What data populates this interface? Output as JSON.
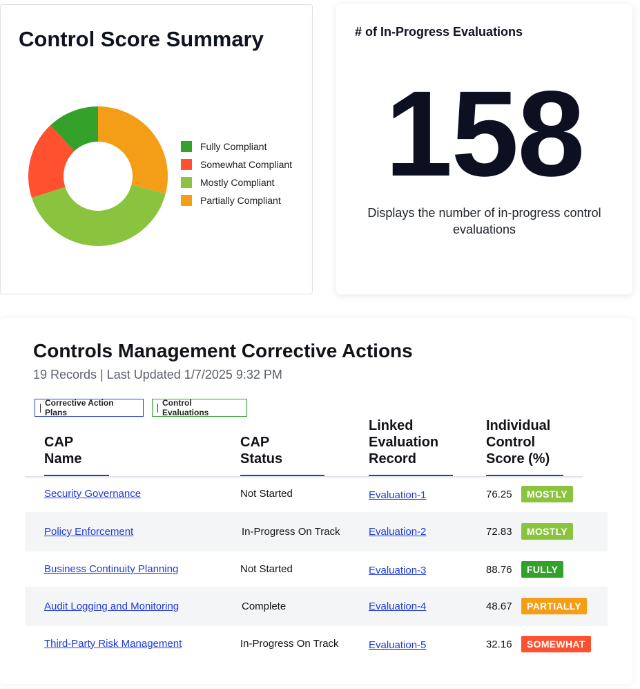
{
  "summary": {
    "title": "Control Score Summary",
    "legend": [
      {
        "label": "Fully Compliant",
        "color": "#33a12a"
      },
      {
        "label": "Somewhat Compliant",
        "color": "#ff5030"
      },
      {
        "label": "Mostly Compliant",
        "color": "#8ac43e"
      },
      {
        "label": "Partially Compliant",
        "color": "#f49d16"
      }
    ]
  },
  "chart_data": {
    "type": "pie",
    "variant": "donut",
    "title": "Control Score Summary",
    "legend_position": "right",
    "series": [
      {
        "name": "Partially Compliant",
        "value": 29,
        "color": "#f49d16"
      },
      {
        "name": "Mostly Compliant",
        "value": 41,
        "color": "#8ac43e"
      },
      {
        "name": "Somewhat Compliant",
        "value": 18,
        "color": "#ff5030"
      },
      {
        "name": "Fully Compliant",
        "value": 12,
        "color": "#33a12a"
      }
    ]
  },
  "count_card": {
    "title": "# of In-Progress Evaluations",
    "value": "158",
    "description": "Displays the number of in-progress control evaluations"
  },
  "table": {
    "title": "Controls Management Corrective Actions",
    "meta": "19 Records | Last Updated 1/7/2025 9:32 PM",
    "filters": [
      "Corrective Action Plans",
      "Control Evaluations"
    ],
    "headers": {
      "cap_name": [
        "CAP",
        "Name"
      ],
      "cap_status": [
        "CAP",
        "Status"
      ],
      "linked": [
        "Linked",
        "Evaluation",
        "Record"
      ],
      "score": [
        "Individual",
        "Control",
        "Score (%)"
      ]
    },
    "badge_colors": {
      "MOSTLY": "#8ac43e",
      "FULLY": "#33a12a",
      "PARTIALLY": "#f49d16",
      "SOMEWHAT": "#ff5030"
    },
    "rows": [
      {
        "name": "Security Governance",
        "status": "Not Started",
        "evaluation": "Evaluation-1",
        "score": "76.25",
        "badge": "MOSTLY"
      },
      {
        "name": "Policy Enforcement",
        "status": "In-Progress On Track",
        "evaluation": "Evaluation-2",
        "score": "72.83",
        "badge": "MOSTLY"
      },
      {
        "name": "Business Continuity Planning",
        "status": "Not Started",
        "evaluation": "Evaluation-3",
        "score": "88.76",
        "badge": "FULLY"
      },
      {
        "name": "Audit Logging and Monitoring",
        "status": "Complete",
        "evaluation": "Evaluation-4",
        "score": "48.67",
        "badge": "PARTIALLY"
      },
      {
        "name": "Third-Party Risk Management",
        "status": "In-Progress On Track",
        "evaluation": "Evaluation-5",
        "score": "32.16",
        "badge": "SOMEWHAT"
      }
    ]
  }
}
